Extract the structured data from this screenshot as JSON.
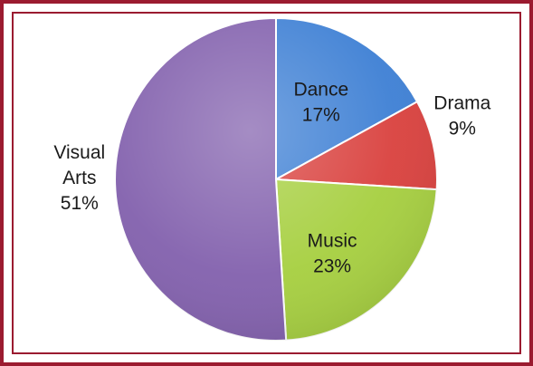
{
  "chart_data": {
    "type": "pie",
    "categories": [
      "Dance",
      "Drama",
      "Music",
      "Visual Arts"
    ],
    "values": [
      17,
      9,
      23,
      51
    ],
    "value_labels": [
      "17%",
      "9%",
      "23%",
      "51%"
    ],
    "label_lines": [
      [
        "Dance",
        "17%"
      ],
      [
        "Drama",
        "9%"
      ],
      [
        "Music",
        "23%"
      ],
      [
        "Visual",
        "Arts",
        "51%"
      ]
    ],
    "colors": [
      "#3d7fd4",
      "#d9403d",
      "#a6cf3f",
      "#8260ad"
    ],
    "start_angle_deg": 0,
    "direction": "clockwise",
    "title": "",
    "legend": "none"
  },
  "frame": {
    "border_color": "#9b1b30",
    "background": "#ffffff"
  }
}
